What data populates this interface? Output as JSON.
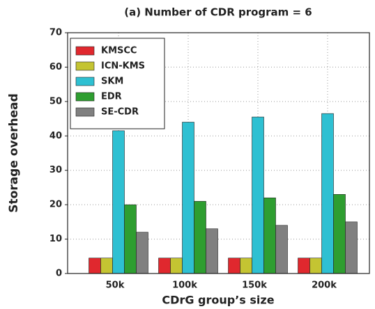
{
  "chart_data": {
    "type": "bar",
    "title": "(a) Number of CDR program = 6",
    "x_label": "CDrG group’s size",
    "y_label": "Storage overhead",
    "categories": [
      "50k",
      "100k",
      "150k",
      "200k"
    ],
    "series": [
      {
        "name": "KMSCC",
        "color": "#e0282e",
        "values": [
          4.5,
          4.5,
          4.5,
          4.5
        ]
      },
      {
        "name": "ICN-KMS",
        "color": "#c4c432",
        "values": [
          4.5,
          4.5,
          4.5,
          4.5
        ]
      },
      {
        "name": "SKM",
        "color": "#2ec0d2",
        "values": [
          41.5,
          44,
          45.5,
          46.5
        ]
      },
      {
        "name": "EDR",
        "color": "#2e9e30",
        "values": [
          20,
          21,
          22,
          23
        ]
      },
      {
        "name": "SE-CDR",
        "color": "#808080",
        "values": [
          12,
          13,
          14,
          15
        ]
      }
    ],
    "ylim": [
      0,
      70
    ],
    "yticks": [
      0,
      10,
      20,
      30,
      40,
      50,
      60,
      70
    ],
    "grid": true,
    "legend": "upper left"
  }
}
